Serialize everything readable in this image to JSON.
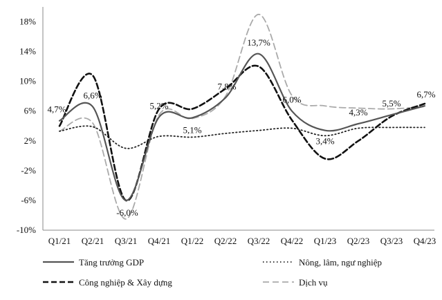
{
  "chart_data": {
    "type": "line",
    "categories": [
      "Q1/21",
      "Q2/21",
      "Q3/21",
      "Q4/21",
      "Q1/22",
      "Q2/22",
      "Q3/22",
      "Q4/22",
      "Q1/23",
      "Q2/23",
      "Q3/23",
      "Q4/23"
    ],
    "ylim": [
      -10,
      20
    ],
    "yticks": [
      -10,
      -6,
      -2,
      2,
      6,
      10,
      14,
      18
    ],
    "ytick_labels": [
      "-10%",
      "-6%",
      "-2%",
      "2%",
      "6%",
      "10%",
      "14%",
      "18%"
    ],
    "grid": false,
    "legend_position": "bottom",
    "series": [
      {
        "name": "Tăng trưởng GDP",
        "style": "solid",
        "color": "#555555",
        "values": [
          4.7,
          6.6,
          -6.0,
          5.2,
          5.1,
          7.8,
          13.7,
          6.0,
          3.4,
          4.3,
          5.5,
          6.7
        ],
        "data_labels": [
          "4,7%",
          "6,6%",
          "-6,0%",
          "5,2%",
          "5,1%",
          "7,8%",
          "13,7%",
          "6,0%",
          "3,4%",
          "4,3%",
          "5,5%",
          "6,7%"
        ]
      },
      {
        "name": "Nông, lâm, ngư nghiệp",
        "style": "dotted",
        "color": "#222222",
        "values": [
          3.3,
          3.9,
          1.0,
          2.6,
          2.5,
          3.0,
          3.4,
          3.7,
          2.7,
          3.7,
          3.8,
          3.8
        ]
      },
      {
        "name": "Công nghiệp & Xây dựng",
        "style": "dashed",
        "color": "#111111",
        "values": [
          4.0,
          10.8,
          -6.0,
          6.3,
          6.3,
          9.0,
          12.0,
          4.8,
          -0.4,
          2.0,
          5.3,
          7.0
        ]
      },
      {
        "name": "Dịch vụ",
        "style": "longdash",
        "color": "#aaaaaa",
        "values": [
          3.3,
          4.4,
          -8.5,
          5.5,
          5.0,
          8.0,
          19.0,
          8.1,
          6.7,
          6.4,
          6.3,
          6.6
        ]
      }
    ]
  }
}
